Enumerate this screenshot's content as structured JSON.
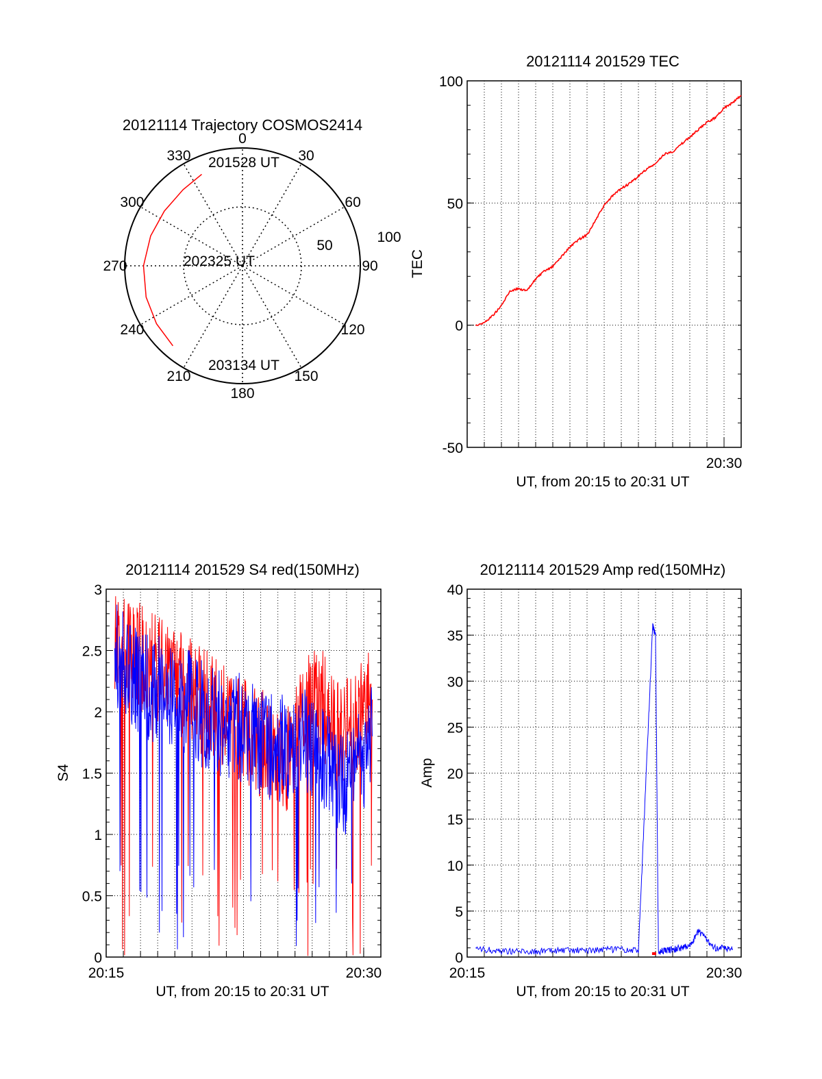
{
  "chart_data": [
    {
      "type": "polar",
      "title": "20121114 Trajectory COSMOS2414",
      "angle_labels": [
        "0",
        "30",
        "60",
        "90",
        "120",
        "150",
        "180",
        "210",
        "240",
        "270",
        "300",
        "330"
      ],
      "radius_labels": [
        "50",
        "100"
      ],
      "series": [
        {
          "color": "#ff0000",
          "points": [
            {
              "azimuth": 336,
              "zenith": 85
            },
            {
              "azimuth": 322,
              "zenith": 82
            },
            {
              "azimuth": 305,
              "zenith": 81
            },
            {
              "azimuth": 288,
              "zenith": 82
            },
            {
              "azimuth": 270,
              "zenith": 84
            },
            {
              "azimuth": 252,
              "zenith": 86
            },
            {
              "azimuth": 236,
              "zenith": 88
            },
            {
              "azimuth": 221,
              "zenith": 90
            }
          ]
        }
      ],
      "annotations": [
        "201528 UT",
        "202325 UT",
        "203134 UT"
      ]
    },
    {
      "type": "line",
      "title": "20121114 201529 TEC",
      "xlabel": "UT, from 20:15 to 20:31 UT",
      "ylabel": "TEC",
      "x_tick_labels": [
        "20:30"
      ],
      "xlim": [
        "20:15",
        "20:31"
      ],
      "ylim": [
        -50,
        100
      ],
      "y_ticks": [
        -50,
        0,
        50,
        100
      ],
      "grid": true,
      "series": [
        {
          "color": "#ff0000",
          "x": [
            "20:15:30",
            "20:16:00",
            "20:16:30",
            "20:17:00",
            "20:17:30",
            "20:18:00",
            "20:18:30",
            "20:19:00",
            "20:19:30",
            "20:20:00",
            "20:20:30",
            "20:21:00",
            "20:21:30",
            "20:22:00",
            "20:22:30",
            "20:23:00",
            "20:23:30",
            "20:24:00",
            "20:24:30",
            "20:25:00",
            "20:25:30",
            "20:26:00",
            "20:26:30",
            "20:27:00",
            "20:27:30",
            "20:28:00",
            "20:28:30",
            "20:29:00",
            "20:29:30",
            "20:30:00",
            "20:30:30",
            "20:31:00"
          ],
          "values": [
            0,
            1,
            4,
            8,
            14,
            15,
            14,
            19,
            22,
            24,
            28,
            32,
            35,
            37,
            43,
            49,
            53,
            56,
            58,
            61,
            64,
            66,
            70,
            71,
            74,
            77,
            80,
            83,
            85,
            89,
            91,
            94
          ]
        }
      ]
    },
    {
      "type": "line",
      "title": "20121114 201529 S4 red(150MHz)",
      "xlabel": "UT, from 20:15 to 20:31 UT",
      "ylabel": "S4",
      "x_tick_labels": [
        "20:15",
        "20:30"
      ],
      "xlim": [
        "20:15",
        "20:31"
      ],
      "ylim": [
        0,
        3
      ],
      "y_ticks": [
        0,
        0.5,
        1,
        1.5,
        2,
        2.5,
        3
      ],
      "grid": true,
      "series": [
        {
          "color": "#ff0000",
          "x": [
            "20:15:30",
            "20:16:30",
            "20:17:30",
            "20:18:30",
            "20:19:30",
            "20:20:30",
            "20:21:30",
            "20:22:30",
            "20:23:30",
            "20:24:30",
            "20:25:30",
            "20:26:30",
            "20:27:30",
            "20:28:30",
            "20:29:30",
            "20:30:30"
          ],
          "values": [
            2.6,
            2.5,
            2.4,
            2.3,
            2.2,
            2.1,
            2.0,
            1.9,
            1.8,
            1.7,
            1.6,
            2.0,
            2.1,
            1.8,
            1.9,
            2.1
          ]
        },
        {
          "color": "#0000ff",
          "x": [
            "20:15:30",
            "20:16:30",
            "20:17:30",
            "20:18:30",
            "20:19:30",
            "20:20:30",
            "20:21:30",
            "20:22:30",
            "20:23:30",
            "20:24:30",
            "20:25:30",
            "20:26:30",
            "20:27:30",
            "20:28:30",
            "20:29:30",
            "20:30:30"
          ],
          "values": [
            2.5,
            2.3,
            2.2,
            2.2,
            2.1,
            2.0,
            1.9,
            1.9,
            1.8,
            1.7,
            1.7,
            1.8,
            1.7,
            1.4,
            1.5,
            1.8
          ]
        }
      ]
    },
    {
      "type": "line",
      "title": "20121114 201529 Amp red(150MHz)",
      "xlabel": "UT, from 20:15 to 20:31 UT",
      "ylabel": "Amp",
      "x_tick_labels": [
        "20:15",
        "20:30"
      ],
      "xlim": [
        "20:15",
        "20:31"
      ],
      "ylim": [
        0,
        40
      ],
      "y_ticks": [
        0,
        5,
        10,
        15,
        20,
        25,
        30,
        35,
        40
      ],
      "grid": true,
      "series": [
        {
          "color": "#0000ff",
          "x": [
            "20:15:30",
            "20:17:00",
            "20:19:00",
            "20:21:00",
            "20:23:00",
            "20:25:00",
            "20:25:50",
            "20:26:00",
            "20:26:10",
            "20:27:00",
            "20:28:00",
            "20:28:30",
            "20:29:30",
            "20:30:30"
          ],
          "values": [
            0.8,
            0.7,
            0.6,
            0.7,
            0.8,
            0.7,
            36,
            35,
            0.6,
            0.8,
            1.2,
            2.8,
            1.0,
            0.9
          ]
        },
        {
          "color": "#ff0000",
          "x": [
            "20:25:55"
          ],
          "values": [
            0.3
          ]
        }
      ]
    }
  ]
}
